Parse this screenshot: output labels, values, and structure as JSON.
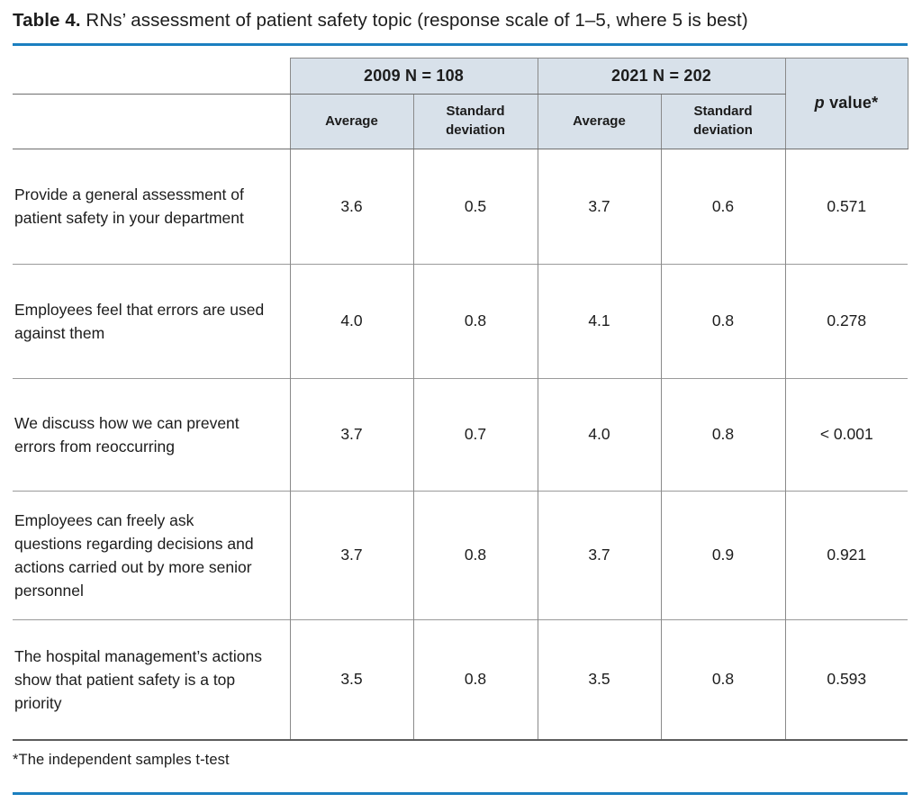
{
  "title": {
    "label": "Table 4.",
    "text": " RNs’ assessment of patient safety topic (response scale of 1–5, where 5 is best)"
  },
  "colors": {
    "accent_rule": "#1b7fc0",
    "header_background": "#d8e1ea",
    "grid_line": "#8a8a8a",
    "text": "#1c1c1c"
  },
  "table": {
    "group_headers": [
      {
        "label": "2009 N = 108"
      },
      {
        "label": "2021 N = 202"
      }
    ],
    "sub_headers": [
      "Average",
      "Standard deviation",
      "Average",
      "Standard deviation"
    ],
    "p_value_header": {
      "italic": "p",
      "rest": " value*"
    },
    "rows": [
      {
        "label": "Provide a general assessment of patient safety in your department",
        "values": [
          "3.6",
          "0.5",
          "3.7",
          "0.6",
          "0.571"
        ]
      },
      {
        "label": "Employees feel that errors are used against them",
        "values": [
          "4.0",
          "0.8",
          "4.1",
          "0.8",
          "0.278"
        ]
      },
      {
        "label": "We discuss how we can prevent errors from reoccurring",
        "values": [
          "3.7",
          "0.7",
          "4.0",
          "0.8",
          "< 0.001"
        ]
      },
      {
        "label": "Employees can freely ask questions regarding decisions and actions carried out by more senior personnel",
        "values": [
          "3.7",
          "0.8",
          "3.7",
          "0.9",
          "0.921"
        ]
      },
      {
        "label": "The hospital management’s actions show that patient safety is a top priority",
        "values": [
          "3.5",
          "0.8",
          "3.5",
          "0.8",
          "0.593"
        ]
      }
    ],
    "footnote": "*The independent samples t-test"
  }
}
